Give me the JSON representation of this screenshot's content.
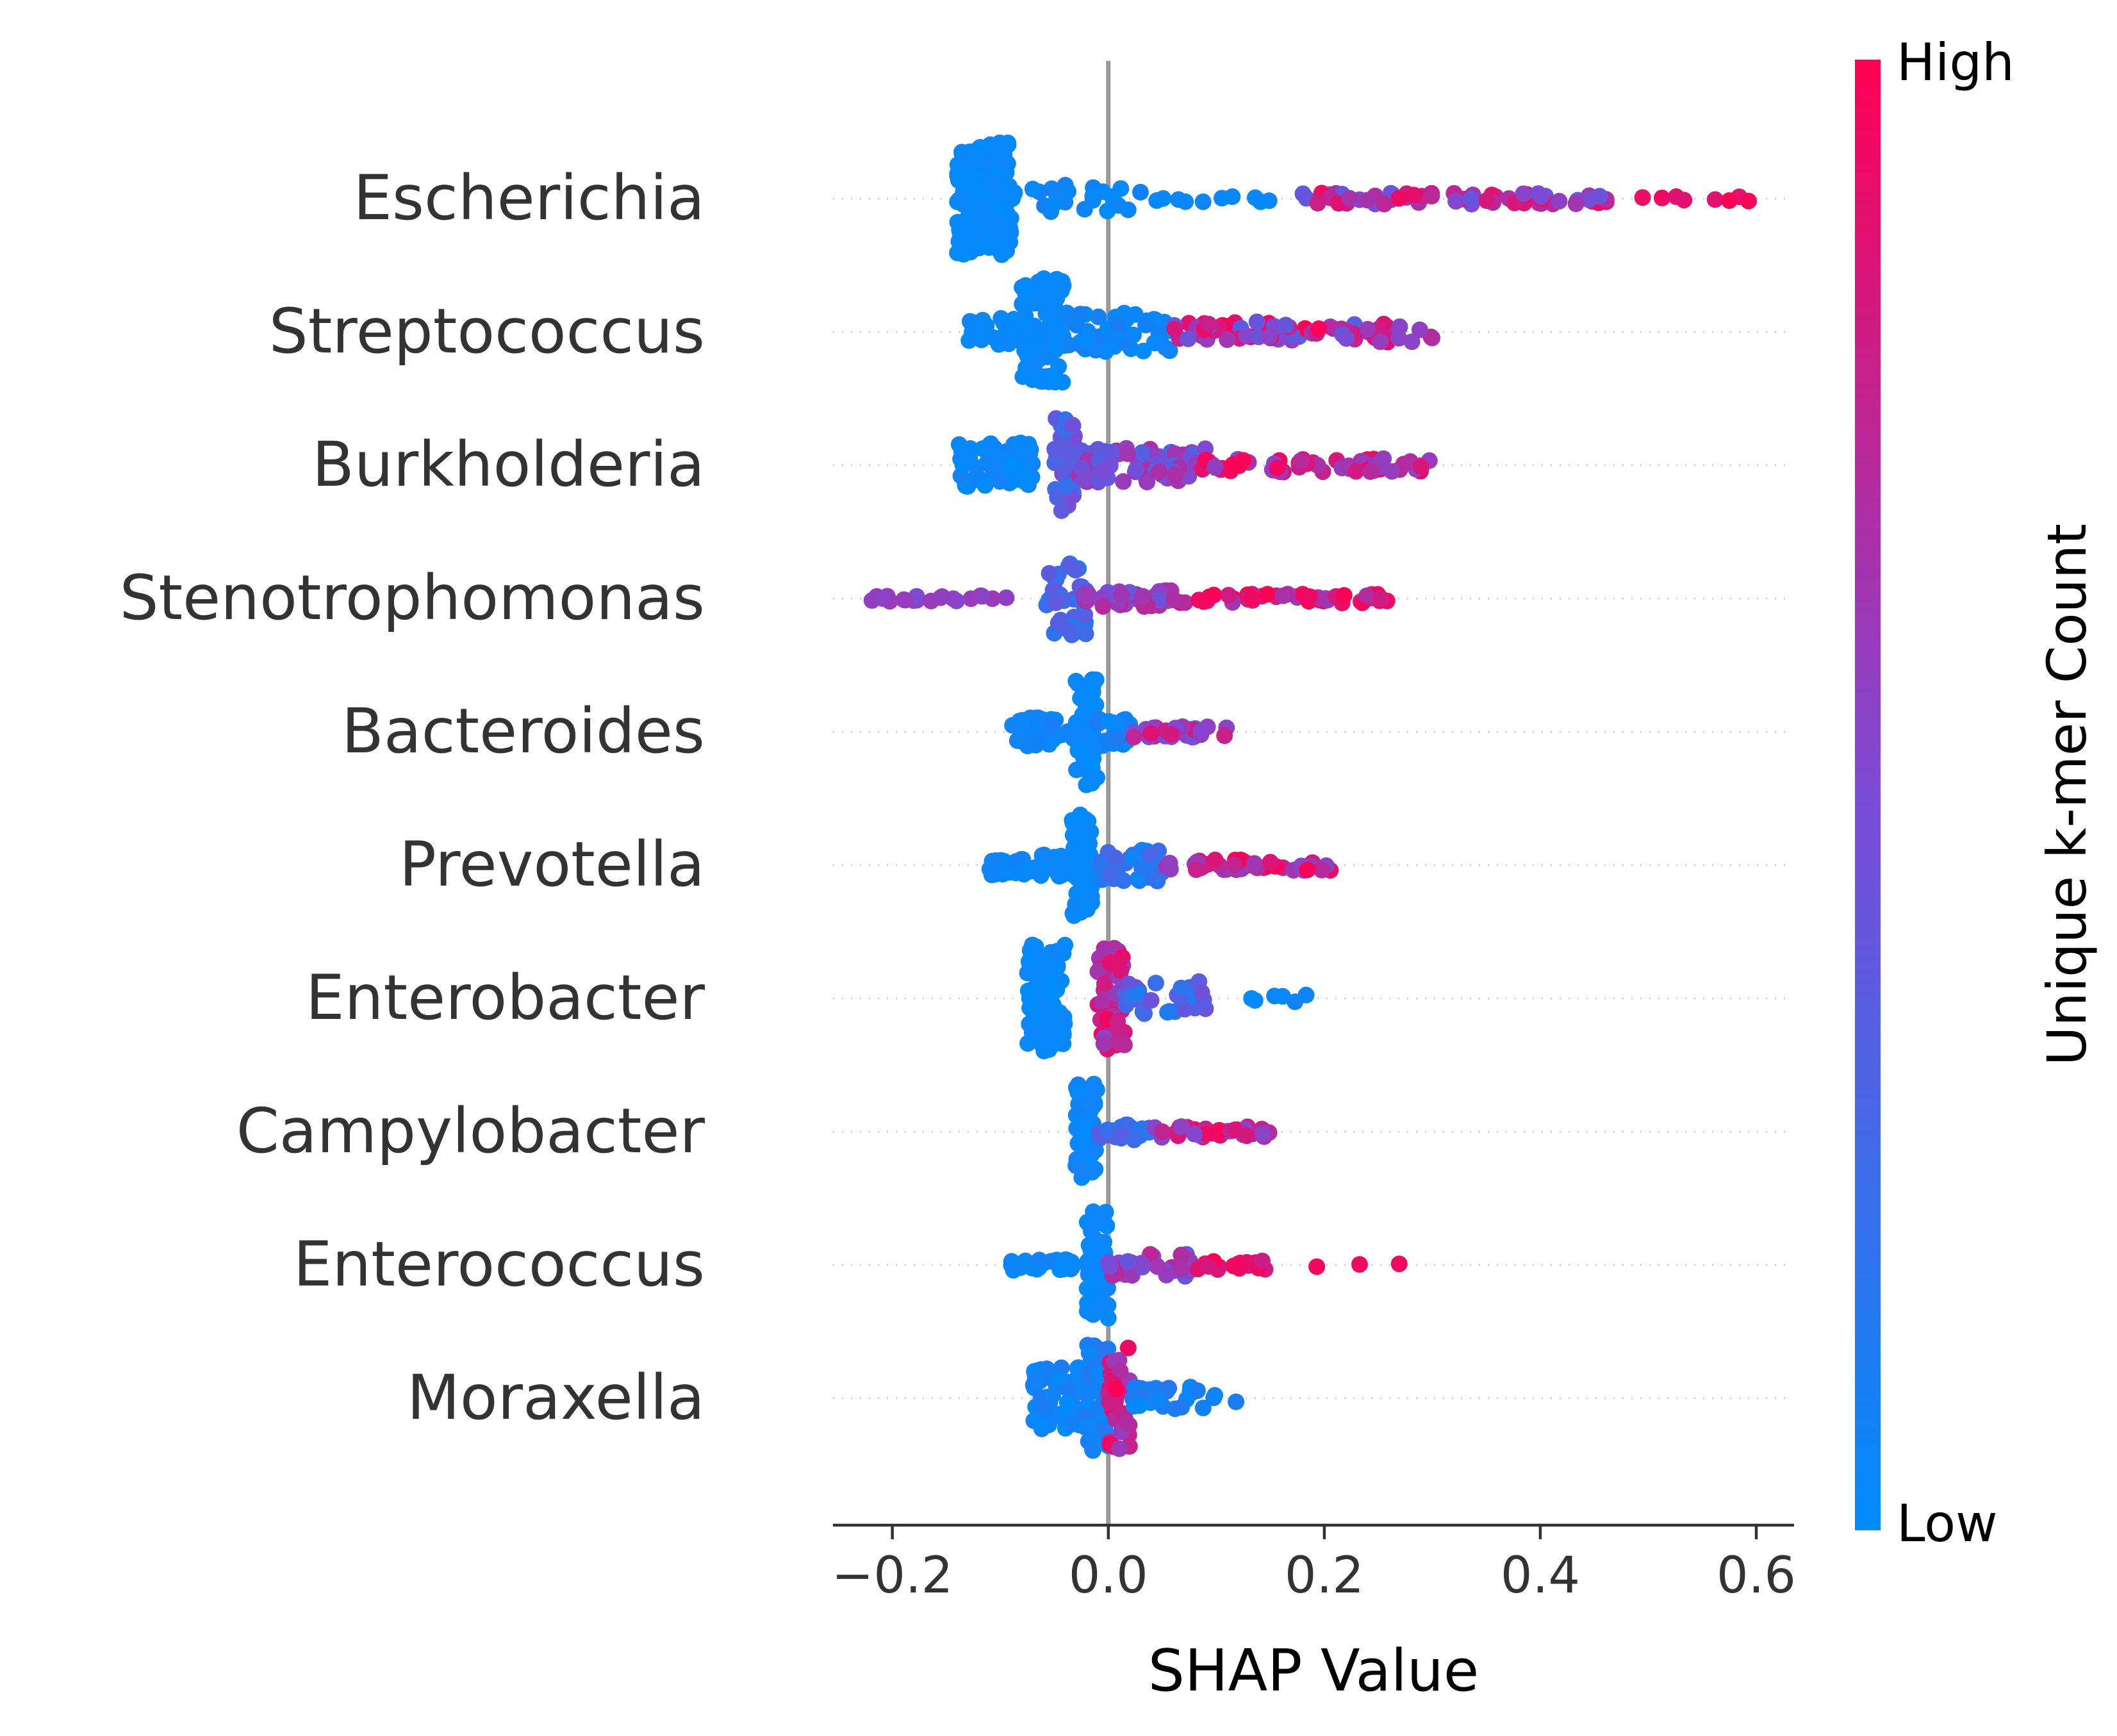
{
  "chart_data": {
    "type": "scatter",
    "subtype": "shap-beeswarm",
    "title": "",
    "xlabel": "SHAP Value",
    "ylabel": "",
    "xlim": [
      -0.255,
      0.635
    ],
    "xticks": [
      -0.2,
      0.0,
      0.2,
      0.4,
      0.6
    ],
    "xtick_labels": [
      "−0.2",
      "0.0",
      "0.2",
      "0.4",
      "0.6"
    ],
    "zero_line": 0.0,
    "grid": false,
    "colorbar": {
      "label": "Unique k-mer Count",
      "high_label": "High",
      "low_label": "Low",
      "low_color": "#008bfb",
      "mid_color": "#7c4bd6",
      "high_color": "#ff0052"
    },
    "features": [
      {
        "name": "Escherichia",
        "clusters": [
          {
            "x": [
              -0.14,
              -0.09
            ],
            "n": 170,
            "f": [
              0.0,
              0.05
            ],
            "spread": 1.0
          },
          {
            "x": [
              -0.09,
              0.03
            ],
            "n": 25,
            "f": [
              0.0,
              0.08
            ],
            "spread": 0.28
          },
          {
            "x": [
              0.03,
              0.15
            ],
            "n": 10,
            "f": [
              0.0,
              0.05
            ],
            "spread": 0.06
          },
          {
            "x": [
              0.18,
              0.48
            ],
            "n": 70,
            "f": [
              0.4,
              1.0
            ],
            "spread": 0.1
          },
          {
            "x": [
              0.49,
              0.6
            ],
            "n": 8,
            "f": [
              0.85,
              1.0
            ],
            "spread": 0.05
          }
        ]
      },
      {
        "name": "Streptococcus",
        "clusters": [
          {
            "x": [
              -0.13,
              -0.08
            ],
            "n": 25,
            "f": [
              0.0,
              0.05
            ],
            "spread": 0.25
          },
          {
            "x": [
              -0.08,
              -0.04
            ],
            "n": 90,
            "f": [
              0.0,
              0.05
            ],
            "spread": 0.95
          },
          {
            "x": [
              -0.04,
              0.06
            ],
            "n": 50,
            "f": [
              0.0,
              0.1
            ],
            "spread": 0.35
          },
          {
            "x": [
              0.06,
              0.3
            ],
            "n": 70,
            "f": [
              0.35,
              1.0
            ],
            "spread": 0.18
          }
        ]
      },
      {
        "name": "Burkholderia",
        "clusters": [
          {
            "x": [
              -0.14,
              -0.07
            ],
            "n": 70,
            "f": [
              0.0,
              0.08
            ],
            "spread": 0.4
          },
          {
            "x": [
              -0.05,
              -0.03
            ],
            "n": 45,
            "f": [
              0.2,
              0.55
            ],
            "spread": 0.85
          },
          {
            "x": [
              -0.03,
              0.09
            ],
            "n": 75,
            "f": [
              0.3,
              0.7
            ],
            "spread": 0.3
          },
          {
            "x": [
              0.08,
              0.3
            ],
            "n": 60,
            "f": [
              0.55,
              1.0
            ],
            "spread": 0.12
          }
        ]
      },
      {
        "name": "Stenotrophomonas",
        "clusters": [
          {
            "x": [
              -0.22,
              -0.09
            ],
            "n": 22,
            "f": [
              0.5,
              0.62
            ],
            "spread": 0.05
          },
          {
            "x": [
              -0.06,
              -0.02
            ],
            "n": 40,
            "f": [
              0.1,
              0.4
            ],
            "spread": 0.65
          },
          {
            "x": [
              -0.03,
              0.06
            ],
            "n": 40,
            "f": [
              0.4,
              0.75
            ],
            "spread": 0.15
          },
          {
            "x": [
              0.06,
              0.26
            ],
            "n": 50,
            "f": [
              0.6,
              1.0
            ],
            "spread": 0.08
          }
        ]
      },
      {
        "name": "Bacteroides",
        "clusters": [
          {
            "x": [
              -0.09,
              -0.03
            ],
            "n": 45,
            "f": [
              0.0,
              0.1
            ],
            "spread": 0.25
          },
          {
            "x": [
              -0.03,
              -0.01
            ],
            "n": 50,
            "f": [
              0.0,
              0.05
            ],
            "spread": 0.95
          },
          {
            "x": [
              -0.01,
              0.02
            ],
            "n": 25,
            "f": [
              0.0,
              0.15
            ],
            "spread": 0.25
          },
          {
            "x": [
              0.02,
              0.12
            ],
            "n": 35,
            "f": [
              0.4,
              0.9
            ],
            "spread": 0.1
          }
        ]
      },
      {
        "name": "Prevotella",
        "clusters": [
          {
            "x": [
              -0.11,
              -0.04
            ],
            "n": 40,
            "f": [
              0.0,
              0.08
            ],
            "spread": 0.2
          },
          {
            "x": [
              -0.035,
              -0.015
            ],
            "n": 55,
            "f": [
              0.0,
              0.05
            ],
            "spread": 0.9
          },
          {
            "x": [
              -0.01,
              0.05
            ],
            "n": 35,
            "f": [
              0.05,
              0.3
            ],
            "spread": 0.3
          },
          {
            "x": [
              0.05,
              0.21
            ],
            "n": 40,
            "f": [
              0.55,
              1.0
            ],
            "spread": 0.1
          }
        ]
      },
      {
        "name": "Enterobacter",
        "clusters": [
          {
            "x": [
              -0.075,
              -0.04
            ],
            "n": 90,
            "f": [
              0.0,
              0.05
            ],
            "spread": 0.95
          },
          {
            "x": [
              -0.01,
              0.015
            ],
            "n": 55,
            "f": [
              0.55,
              1.0
            ],
            "spread": 0.9
          },
          {
            "x": [
              0.015,
              0.09
            ],
            "n": 30,
            "f": [
              0.1,
              0.45
            ],
            "spread": 0.3
          },
          {
            "x": [
              0.13,
              0.19
            ],
            "n": 6,
            "f": [
              0.0,
              0.08
            ],
            "spread": 0.06
          }
        ]
      },
      {
        "name": "Campylobacter",
        "clusters": [
          {
            "x": [
              -0.03,
              -0.01
            ],
            "n": 55,
            "f": [
              0.0,
              0.08
            ],
            "spread": 0.9
          },
          {
            "x": [
              -0.01,
              0.04
            ],
            "n": 20,
            "f": [
              0.1,
              0.4
            ],
            "spread": 0.15
          },
          {
            "x": [
              0.04,
              0.15
            ],
            "n": 40,
            "f": [
              0.5,
              1.0
            ],
            "spread": 0.1
          }
        ]
      },
      {
        "name": "Enterococcus",
        "clusters": [
          {
            "x": [
              -0.09,
              -0.03
            ],
            "n": 25,
            "f": [
              0.0,
              0.08
            ],
            "spread": 0.1
          },
          {
            "x": [
              -0.02,
              0.0
            ],
            "n": 55,
            "f": [
              0.0,
              0.05
            ],
            "spread": 0.95
          },
          {
            "x": [
              0.0,
              0.08
            ],
            "n": 35,
            "f": [
              0.4,
              0.8
            ],
            "spread": 0.2
          },
          {
            "x": [
              0.08,
              0.16
            ],
            "n": 18,
            "f": [
              0.75,
              1.0
            ],
            "spread": 0.08
          },
          {
            "x": [
              0.19,
              0.28
            ],
            "n": 3,
            "f": [
              0.9,
              1.0
            ],
            "spread": 0.03
          }
        ]
      },
      {
        "name": "Moraxella",
        "clusters": [
          {
            "x": [
              -0.07,
              -0.02
            ],
            "n": 70,
            "f": [
              0.0,
              0.12
            ],
            "spread": 0.55
          },
          {
            "x": [
              -0.02,
              0.0
            ],
            "n": 55,
            "f": [
              0.0,
              0.15
            ],
            "spread": 0.95
          },
          {
            "x": [
              0.0,
              0.02
            ],
            "n": 35,
            "f": [
              0.6,
              1.0
            ],
            "spread": 0.9
          },
          {
            "x": [
              0.02,
              0.12
            ],
            "n": 30,
            "f": [
              0.0,
              0.15
            ],
            "spread": 0.2
          }
        ]
      }
    ]
  }
}
